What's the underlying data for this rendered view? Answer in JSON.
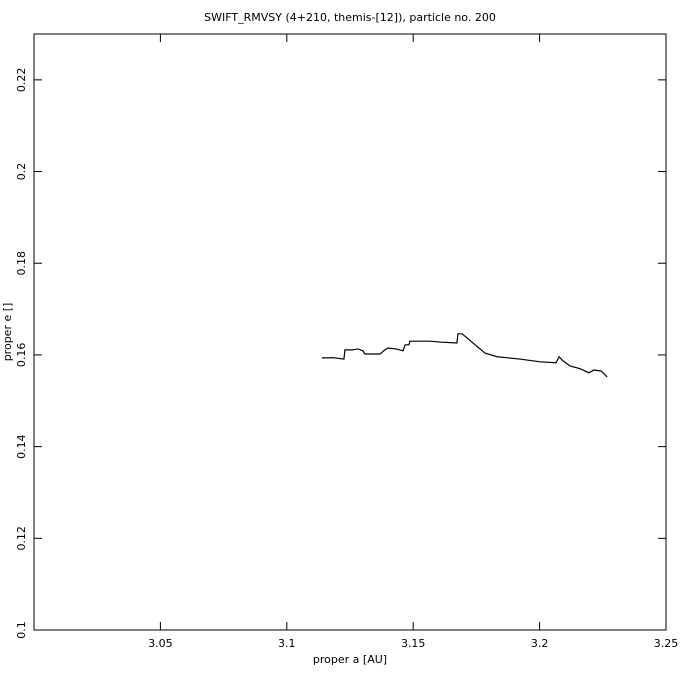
{
  "chart_data": {
    "type": "line",
    "title": "SWIFT_RMVSY (4+210, themis-[12]), particle no. 200",
    "x_label": "proper a [AU]",
    "y_label": "proper e []",
    "x": [
      3.1139,
      3.1183,
      3.1226,
      3.123,
      3.1258,
      3.1282,
      3.1301,
      3.1309,
      3.1369,
      3.1388,
      3.14,
      3.1432,
      3.146,
      3.1468,
      3.1483,
      3.1487,
      3.1527,
      3.1567,
      3.1606,
      3.1673,
      3.1677,
      3.1693,
      3.1709,
      3.1745,
      3.1784,
      3.1832,
      3.1922,
      3.2002,
      3.2065,
      3.2077,
      3.2093,
      3.212,
      3.216,
      3.2195,
      3.2215,
      3.2243,
      3.2251,
      3.2267
    ],
    "values": [
      0.15935,
      0.1594,
      0.1591,
      0.1611,
      0.1611,
      0.1613,
      0.1609,
      0.1602,
      0.1602,
      0.1611,
      0.1615,
      0.1613,
      0.1609,
      0.1622,
      0.1622,
      0.163,
      0.163,
      0.163,
      0.1628,
      0.1626,
      0.1646,
      0.1646,
      0.1639,
      0.1622,
      0.1604,
      0.1596,
      0.1591,
      0.1585,
      0.1583,
      0.1596,
      0.1587,
      0.1576,
      0.157,
      0.1561,
      0.1567,
      0.1565,
      0.1561,
      0.1552
    ],
    "color": "#000000",
    "xlim": [
      3.0,
      3.25
    ],
    "xticks": [
      3.05,
      3.1,
      3.15,
      3.2,
      3.25
    ],
    "ylim": [
      0.1,
      0.23
    ],
    "yticks": [
      0.1,
      0.12,
      0.14,
      0.16,
      0.18,
      0.2,
      0.22
    ]
  }
}
